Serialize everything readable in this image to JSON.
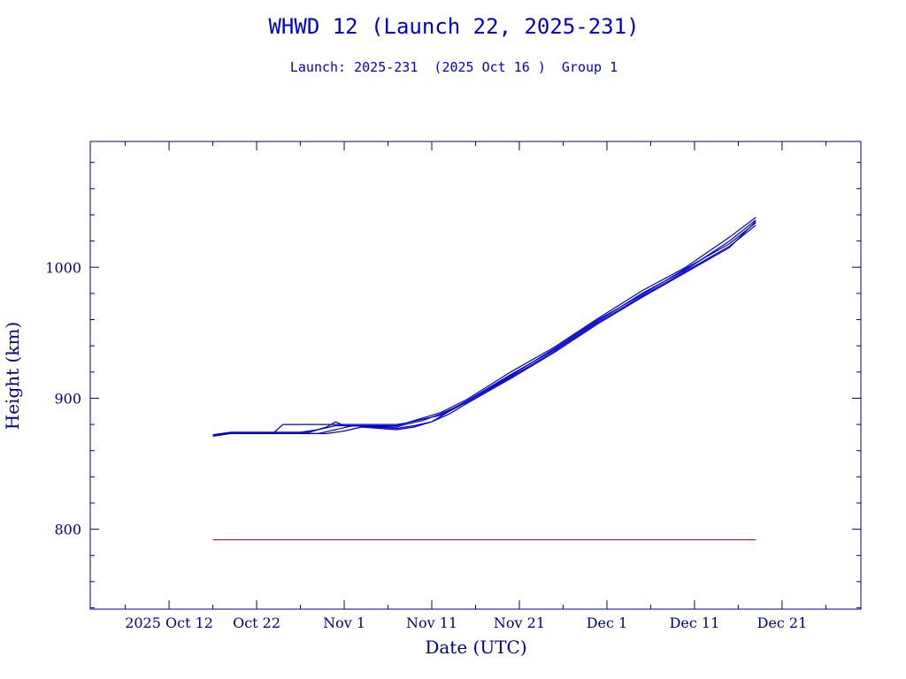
{
  "chart_data": {
    "type": "line",
    "title": "WHWD 12 (Launch 22, 2025-231)",
    "subtitle": "Launch: 2025-231  (2025 Oct 16 )  Group 1",
    "xlabel": "Date (UTC)",
    "ylabel": "Height (km)",
    "x_ticks": [
      "2025 Oct 12",
      "Oct 22",
      "Nov  1",
      "Nov 11",
      "Nov 21",
      "Dec  1",
      "Dec 11",
      "Dec 21"
    ],
    "y_ticks": [
      800,
      900,
      1000
    ],
    "xlim": [
      "2025-10-03",
      "2025-12-30"
    ],
    "ylim": [
      739,
      1096
    ],
    "grid": false,
    "colors": {
      "axes": "#00008b",
      "title": "#0000cc",
      "series": "#0000cc",
      "reference": "#e00000"
    },
    "series": [
      {
        "values": [
          [
            "2025-10-17",
            872
          ],
          [
            "2025-10-19",
            873
          ],
          [
            "2025-10-23",
            873
          ],
          [
            "2025-10-24",
            874
          ],
          [
            "2025-10-25",
            880
          ],
          [
            "2025-11-07",
            880
          ],
          [
            "2025-11-08",
            881
          ],
          [
            "2025-11-10",
            884
          ],
          [
            "2025-11-12",
            887
          ],
          [
            "2025-11-15",
            898
          ],
          [
            "2025-11-20",
            918
          ],
          [
            "2025-11-25",
            937
          ],
          [
            "2025-11-30",
            959
          ],
          [
            "2025-12-05",
            980
          ],
          [
            "2025-12-10",
            998
          ],
          [
            "2025-12-15",
            1020
          ],
          [
            "2025-12-18",
            1036
          ]
        ]
      },
      {
        "values": [
          [
            "2025-10-17",
            872
          ],
          [
            "2025-10-19",
            874
          ],
          [
            "2025-10-27",
            874
          ],
          [
            "2025-10-29",
            876
          ],
          [
            "2025-10-31",
            879
          ],
          [
            "2025-11-07",
            879
          ],
          [
            "2025-11-08",
            881
          ],
          [
            "2025-11-10",
            885
          ],
          [
            "2025-11-12",
            889
          ],
          [
            "2025-11-15",
            899
          ],
          [
            "2025-11-20",
            920
          ],
          [
            "2025-11-25",
            939
          ],
          [
            "2025-11-30",
            961
          ],
          [
            "2025-12-05",
            982
          ],
          [
            "2025-12-10",
            1000
          ],
          [
            "2025-12-15",
            1023
          ],
          [
            "2025-12-18",
            1038
          ]
        ]
      },
      {
        "values": [
          [
            "2025-10-17",
            872
          ],
          [
            "2025-10-19",
            874
          ],
          [
            "2025-10-28",
            874
          ],
          [
            "2025-10-30",
            878
          ],
          [
            "2025-10-31",
            882
          ],
          [
            "2025-11-01",
            879
          ],
          [
            "2025-11-07",
            878
          ],
          [
            "2025-11-08",
            880
          ],
          [
            "2025-11-10",
            883
          ],
          [
            "2025-11-12",
            888
          ],
          [
            "2025-11-15",
            897
          ],
          [
            "2025-11-20",
            917
          ],
          [
            "2025-11-25",
            938
          ],
          [
            "2025-11-30",
            960
          ],
          [
            "2025-12-05",
            979
          ],
          [
            "2025-12-10",
            999
          ],
          [
            "2025-12-15",
            1018
          ],
          [
            "2025-12-18",
            1034
          ]
        ]
      },
      {
        "values": [
          [
            "2025-10-17",
            871
          ],
          [
            "2025-10-19",
            873
          ],
          [
            "2025-10-29",
            873
          ],
          [
            "2025-10-31",
            876
          ],
          [
            "2025-11-02",
            879
          ],
          [
            "2025-11-07",
            877
          ],
          [
            "2025-11-09",
            879
          ],
          [
            "2025-11-11",
            882
          ],
          [
            "2025-11-13",
            890
          ],
          [
            "2025-11-15",
            897
          ],
          [
            "2025-11-20",
            916
          ],
          [
            "2025-11-25",
            936
          ],
          [
            "2025-11-30",
            958
          ],
          [
            "2025-12-05",
            978
          ],
          [
            "2025-12-10",
            997
          ],
          [
            "2025-12-15",
            1016
          ],
          [
            "2025-12-18",
            1032
          ]
        ]
      },
      {
        "values": [
          [
            "2025-10-17",
            872
          ],
          [
            "2025-10-19",
            873
          ],
          [
            "2025-10-30",
            873
          ],
          [
            "2025-11-01",
            875
          ],
          [
            "2025-11-03",
            878
          ],
          [
            "2025-11-07",
            876
          ],
          [
            "2025-11-09",
            878
          ],
          [
            "2025-11-11",
            882
          ],
          [
            "2025-11-13",
            888
          ],
          [
            "2025-11-15",
            896
          ],
          [
            "2025-11-20",
            915
          ],
          [
            "2025-11-25",
            935
          ],
          [
            "2025-11-30",
            957
          ],
          [
            "2025-12-05",
            977
          ],
          [
            "2025-12-10",
            996
          ],
          [
            "2025-12-15",
            1015
          ],
          [
            "2025-12-18",
            1035
          ]
        ]
      }
    ],
    "reference_line": {
      "y": 792,
      "x": [
        "2025-10-17",
        "2025-12-18"
      ],
      "color": "#e00000"
    }
  }
}
